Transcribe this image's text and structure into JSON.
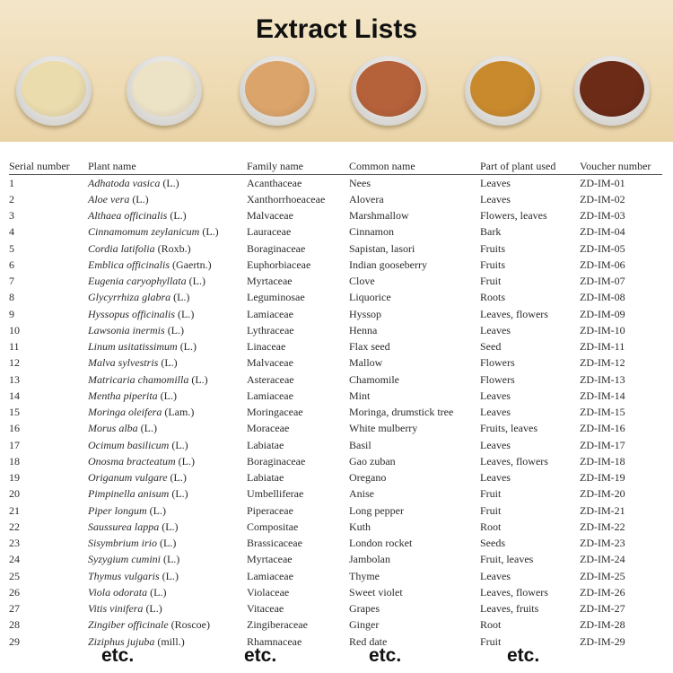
{
  "banner": {
    "title": "Extract Lists",
    "powder_colors": [
      "#ebdcae",
      "#ece2c6",
      "#dba46b",
      "#b5613a",
      "#c98a2e",
      "#6b2b17"
    ]
  },
  "table": {
    "headers": [
      "Serial number",
      "Plant name",
      "Family name",
      "Common name",
      "Part of plant used",
      "Voucher number"
    ],
    "rows": [
      [
        "1",
        "Adhatoda vasica",
        "(L.)",
        "Acanthaceae",
        "Nees",
        "Leaves",
        "ZD-IM-01"
      ],
      [
        "2",
        "Aloe vera",
        "(L.)",
        "Xanthorrhoeaceae",
        "Alovera",
        "Leaves",
        "ZD-IM-02"
      ],
      [
        "3",
        "Althaea officinalis",
        "(L.)",
        "Malvaceae",
        "Marshmallow",
        "Flowers, leaves",
        "ZD-IM-03"
      ],
      [
        "4",
        "Cinnamomum zeylanicum",
        "(L.)",
        "Lauraceae",
        "Cinnamon",
        "Bark",
        "ZD-IM-04"
      ],
      [
        "5",
        "Cordia latifolia",
        "(Roxb.)",
        "Boraginaceae",
        "Sapistan, lasori",
        "Fruits",
        "ZD-IM-05"
      ],
      [
        "6",
        "Emblica officinalis",
        "(Gaertn.)",
        "Euphorbiaceae",
        "Indian gooseberry",
        "Fruits",
        "ZD-IM-06"
      ],
      [
        "7",
        "Eugenia caryophyllata",
        "(L.)",
        "Myrtaceae",
        "Clove",
        "Fruit",
        "ZD-IM-07"
      ],
      [
        "8",
        "Glycyrrhiza glabra",
        "(L.)",
        "Leguminosae",
        "Liquorice",
        "Roots",
        "ZD-IM-08"
      ],
      [
        "9",
        "Hyssopus officinalis",
        "(L.)",
        "Lamiaceae",
        "Hyssop",
        "Leaves, flowers",
        "ZD-IM-09"
      ],
      [
        "10",
        "Lawsonia inermis",
        "(L.)",
        "Lythraceae",
        "Henna",
        "Leaves",
        "ZD-IM-10"
      ],
      [
        "11",
        "Linum usitatissimum",
        "(L.)",
        "Linaceae",
        "Flax seed",
        "Seed",
        "ZD-IM-11"
      ],
      [
        "12",
        "Malva sylvestris",
        "(L.)",
        "Malvaceae",
        "Mallow",
        "Flowers",
        "ZD-IM-12"
      ],
      [
        "13",
        "Matricaria chamomilla",
        "(L.)",
        "Asteraceae",
        "Chamomile",
        "Flowers",
        "ZD-IM-13"
      ],
      [
        "14",
        "Mentha piperita",
        "(L.)",
        "Lamiaceae",
        "Mint",
        "Leaves",
        "ZD-IM-14"
      ],
      [
        "15",
        "Moringa oleifera",
        "(Lam.)",
        "Moringaceae",
        "Moringa, drumstick tree",
        "Leaves",
        "ZD-IM-15"
      ],
      [
        "16",
        "Morus alba",
        "(L.)",
        "Moraceae",
        "White mulberry",
        "Fruits, leaves",
        "ZD-IM-16"
      ],
      [
        "17",
        "Ocimum basilicum",
        "(L.)",
        "Labiatae",
        "Basil",
        "Leaves",
        "ZD-IM-17"
      ],
      [
        "18",
        "Onosma bracteatum",
        "(L.)",
        "Boraginaceae",
        "Gao zuban",
        "Leaves, flowers",
        "ZD-IM-18"
      ],
      [
        "19",
        "Origanum vulgare",
        "(L.)",
        "Labiatae",
        "Oregano",
        "Leaves",
        "ZD-IM-19"
      ],
      [
        "20",
        "Pimpinella anisum",
        "(L.)",
        "Umbelliferae",
        "Anise",
        "Fruit",
        "ZD-IM-20"
      ],
      [
        "21",
        "Piper longum",
        "(L.)",
        "Piperaceae",
        "Long pepper",
        "Fruit",
        "ZD-IM-21"
      ],
      [
        "22",
        "Saussurea lappa",
        "(L.)",
        "Compositae",
        "Kuth",
        "Root",
        "ZD-IM-22"
      ],
      [
        "23",
        "Sisymbrium irio",
        "(L.)",
        "Brassicaceae",
        "London rocket",
        "Seeds",
        "ZD-IM-23"
      ],
      [
        "24",
        "Syzygium cumini",
        "(L.)",
        "Myrtaceae",
        "Jambolan",
        "Fruit, leaves",
        "ZD-IM-24"
      ],
      [
        "25",
        "Thymus vulgaris",
        "(L.)",
        "Lamiaceae",
        "Thyme",
        "Leaves",
        "ZD-IM-25"
      ],
      [
        "26",
        "Viola odorata",
        "(L.)",
        "Violaceae",
        "Sweet violet",
        "Leaves, flowers",
        "ZD-IM-26"
      ],
      [
        "27",
        "Vitis vinifera",
        "(L.)",
        "Vitaceae",
        "Grapes",
        "Leaves, fruits",
        "ZD-IM-27"
      ],
      [
        "28",
        "Zingiber officinale",
        "(Roscoe)",
        "Zingiberaceae",
        "Ginger",
        "Root",
        "ZD-IM-28"
      ],
      [
        "29",
        "Ziziphus jujuba",
        "(mill.)",
        "Rhamnaceae",
        "Red date",
        "Fruit",
        "ZD-IM-29"
      ]
    ]
  },
  "footer": {
    "etc": [
      "etc.",
      "etc.",
      "etc.",
      "etc."
    ]
  }
}
